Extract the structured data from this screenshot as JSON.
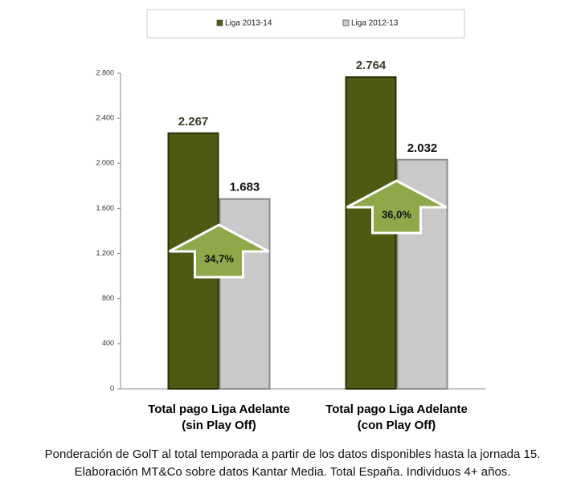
{
  "chart_data": {
    "type": "bar",
    "categories": [
      "Total pago Liga Adelante\n(sin Play Off)",
      "Total pago Liga Adelante\n(con Play Off)"
    ],
    "series": [
      {
        "name": "Liga 2013-14",
        "color": "#4e5a12",
        "values": [
          2267,
          2764
        ],
        "value_labels": [
          "2.267",
          "2.764"
        ]
      },
      {
        "name": "Liga 2012-13",
        "color": "#c9c9c9",
        "values": [
          1683,
          2032
        ],
        "value_labels": [
          "1.683",
          "2.032"
        ]
      }
    ],
    "ylim": [
      0,
      2800
    ],
    "yticks": [
      0,
      400,
      800,
      {
        "value": 1200,
        "label": "1.200"
      },
      {
        "value": 1600,
        "label": "1.600"
      },
      {
        "value": 2000,
        "label": "2.000"
      },
      {
        "value": 2400,
        "label": "2.400"
      },
      {
        "value": 2800,
        "label": "2.800"
      }
    ],
    "grid": false,
    "annotations": [
      "34,7%",
      "36,0%"
    ],
    "caption": [
      "Ponderación de GolT al total temporada a partir de los datos disponibles hasta la jornada 15.",
      "Elaboración MT&Co sobre datos Kantar Media. Total España. Individuos 4+ años."
    ]
  }
}
